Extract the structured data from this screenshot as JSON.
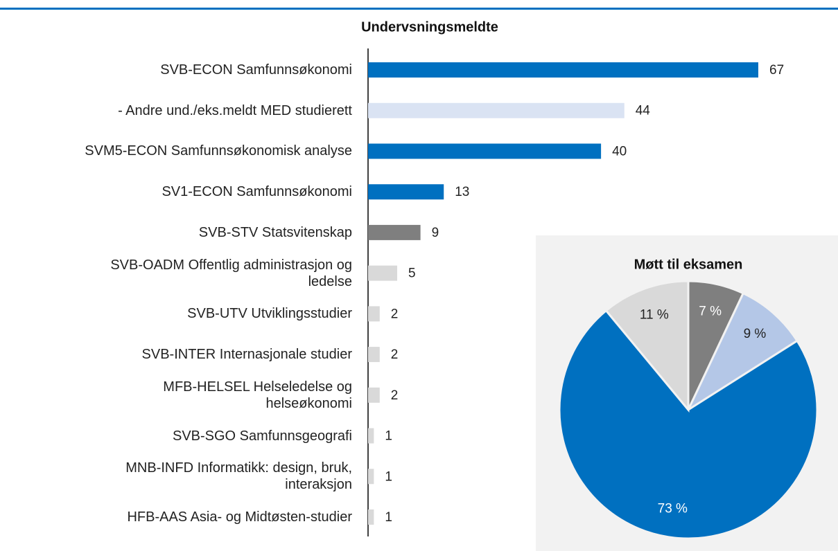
{
  "chart_data": [
    {
      "type": "barh",
      "title": "Undervsningsmeldte",
      "categories": [
        "SVB-ECON Samfunnsøkonomi",
        "- Andre und./eks.meldt MED studierett",
        "SVM5-ECON Samfunnsøkonomisk analyse",
        "SV1-ECON Samfunnsøkonomi",
        "SVB-STV Statsvitenskap",
        "SVB-OADM Offentlig administrasjon og ledelse",
        "SVB-UTV Utviklingsstudier",
        "SVB-INTER Internasjonale studier",
        "MFB-HELSEL Helseledelse og helseøkonomi",
        "SVB-SGO Samfunnsgeografi",
        "MNB-INFD Informatikk: design, bruk, interaksjon",
        "HFB-AAS Asia- og Midtøsten-studier"
      ],
      "values": [
        67,
        44,
        40,
        13,
        9,
        5,
        2,
        2,
        2,
        1,
        1,
        1
      ],
      "colors": [
        "#0070c0",
        "#dae3f3",
        "#0070c0",
        "#0070c0",
        "#7f7f7f",
        "#d9d9d9",
        "#d9d9d9",
        "#d9d9d9",
        "#d9d9d9",
        "#d9d9d9",
        "#d9d9d9",
        "#d9d9d9"
      ]
    },
    {
      "type": "pie",
      "title": "Møtt til eksamen",
      "values": [
        7,
        9,
        73,
        11
      ],
      "value_labels": [
        "7 %",
        "9 %",
        "73 %",
        "11 %"
      ],
      "colors": [
        "#7f7f7f",
        "#b4c7e7",
        "#0070c0",
        "#d9d9d9"
      ]
    }
  ]
}
